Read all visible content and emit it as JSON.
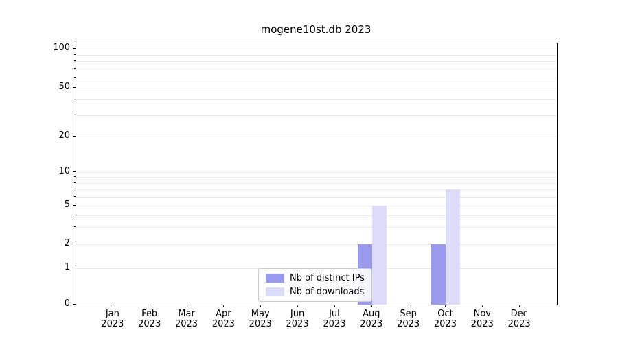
{
  "chart_data": {
    "type": "bar",
    "title": "mogene10st.db 2023",
    "months": [
      "Jan",
      "Feb",
      "Mar",
      "Apr",
      "May",
      "Jun",
      "Jul",
      "Aug",
      "Sep",
      "Oct",
      "Nov",
      "Dec"
    ],
    "year": "2023",
    "series": [
      {
        "name": "Nb of distinct IPs",
        "color": "#9999ee",
        "values": [
          0,
          0,
          0,
          0,
          0,
          0,
          0,
          2,
          0,
          2,
          0,
          0
        ]
      },
      {
        "name": "Nb of downloads",
        "color": "#dcdcf8",
        "values": [
          0,
          0,
          0,
          0,
          0,
          0,
          0,
          5,
          0,
          7,
          0,
          0
        ]
      }
    ],
    "y_ticks": [
      0,
      1,
      2,
      5,
      10,
      20,
      50,
      100
    ],
    "yscale": "symlog",
    "ylim": [
      0,
      100
    ],
    "grid": true,
    "legend_position": "lower center"
  }
}
